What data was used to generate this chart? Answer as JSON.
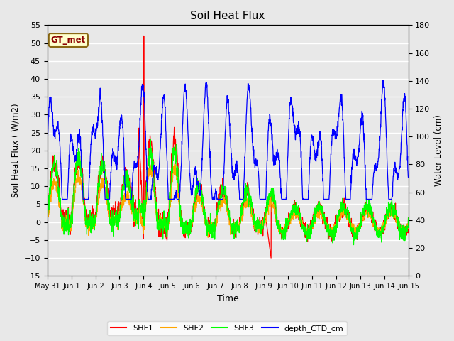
{
  "title": "Soil Heat Flux",
  "xlabel": "Time",
  "ylabel_left": "Soil Heat Flux ( W/m2)",
  "ylabel_right": "Water Level (cm)",
  "ylim_left": [
    -15,
    55
  ],
  "ylim_right": [
    0,
    180
  ],
  "yticks_left": [
    -15,
    -10,
    -5,
    0,
    5,
    10,
    15,
    20,
    25,
    30,
    35,
    40,
    45,
    50,
    55
  ],
  "yticks_right": [
    0,
    20,
    40,
    60,
    80,
    100,
    120,
    140,
    160,
    180
  ],
  "bg_color": "#e8e8e8",
  "plot_bg_color": "#e8e8e8",
  "grid_color": "white",
  "annotation_text": "GT_met",
  "annotation_bbox_facecolor": "#ffffcc",
  "annotation_bbox_edgecolor": "#8B6914",
  "colors": {
    "SHF1": "red",
    "SHF2": "orange",
    "SHF3": "lime",
    "depth_CTD_cm": "blue"
  },
  "legend_labels": [
    "SHF1",
    "SHF2",
    "SHF3",
    "depth_CTD_cm"
  ],
  "x_tick_labels": [
    "May 31",
    "Jun 1",
    "Jun 2",
    "Jun 3",
    "Jun 4",
    "Jun 5",
    "Jun 6",
    "Jun 7",
    "Jun 8",
    "Jun 9",
    "Jun 10",
    "Jun 11",
    "Jun 12",
    "Jun 13",
    "Jun 14",
    "Jun 15"
  ],
  "num_points": 2000,
  "linewidth": 0.9
}
